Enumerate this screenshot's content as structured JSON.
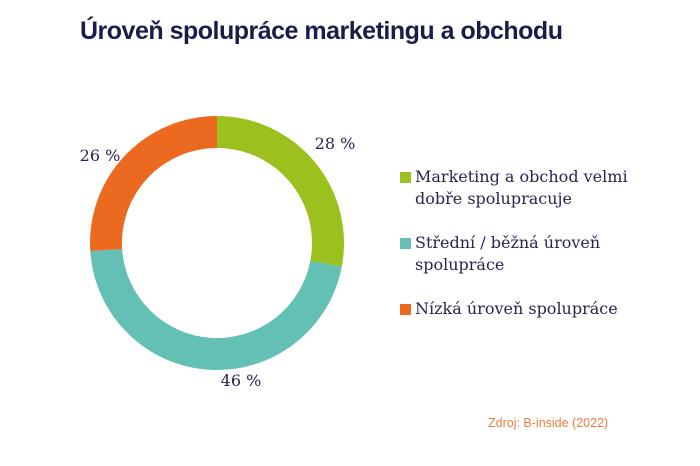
{
  "chart_data": {
    "type": "pie",
    "donut": true,
    "title": "Úroveň spolupráce marketingu a obchodu",
    "categories": [
      "Marketing a obchod velmi dobře spolupracuje",
      "Střední / běžná úroveň spolupráce",
      "Nízká úroveň spolupráce"
    ],
    "values": [
      28,
      46,
      26
    ],
    "data_labels": [
      "28 %",
      "46 %",
      "26 %"
    ],
    "colors": [
      "#9cc11e",
      "#64c0b4",
      "#ec6a1f"
    ],
    "legend_position": "right",
    "source": "Zdroj: B-inside (2022)"
  }
}
